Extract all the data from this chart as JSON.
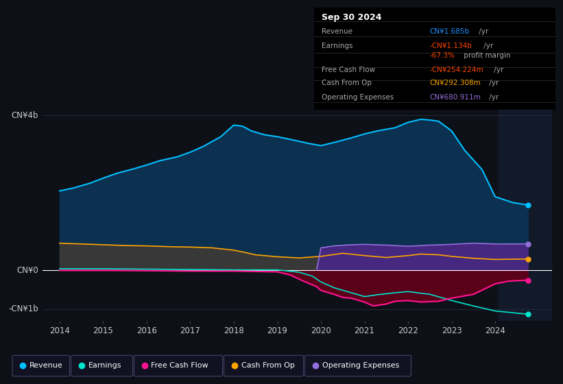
{
  "background_color": "#0d1117",
  "plot_bg_color": "#0d1117",
  "ylabel_top": "CN¥4b",
  "ylabel_zero": "CN¥0",
  "ylabel_bottom": "-CN¥1b",
  "ylim": [
    -1.3,
    4.6
  ],
  "xlim_start": 2013.6,
  "xlim_end": 2025.3,
  "xticks": [
    2014,
    2015,
    2016,
    2017,
    2018,
    2019,
    2020,
    2021,
    2022,
    2023,
    2024
  ],
  "series": {
    "revenue": {
      "color": "#00bfff",
      "fill_color": "#0a3550",
      "label": "Revenue"
    },
    "earnings": {
      "color": "#00e5cc",
      "fill_color": "#0a3550",
      "label": "Earnings"
    },
    "fcf": {
      "color": "#ff1493",
      "fill_color": "#6b0020",
      "label": "Free Cash Flow"
    },
    "cashfromop": {
      "color": "#ffa500",
      "fill_color": "#3a3a3a",
      "label": "Cash From Op"
    },
    "opex": {
      "color": "#9370db",
      "fill_color": "#4b2a8a",
      "label": "Operating Expenses"
    }
  },
  "grid_color": "#2a2a3a",
  "text_color": "#cccccc",
  "revenue_x": [
    2014,
    2014.3,
    2014.7,
    2015,
    2015.3,
    2015.7,
    2016,
    2016.3,
    2016.7,
    2017,
    2017.3,
    2017.7,
    2018,
    2018.2,
    2018.4,
    2018.7,
    2019,
    2019.3,
    2019.7,
    2020,
    2020.3,
    2020.7,
    2021,
    2021.3,
    2021.7,
    2022,
    2022.3,
    2022.5,
    2022.7,
    2023,
    2023.3,
    2023.7,
    2024,
    2024.4,
    2024.75
  ],
  "revenue_y": [
    2.05,
    2.12,
    2.25,
    2.38,
    2.5,
    2.62,
    2.72,
    2.83,
    2.93,
    3.05,
    3.2,
    3.45,
    3.75,
    3.72,
    3.6,
    3.5,
    3.45,
    3.38,
    3.28,
    3.22,
    3.3,
    3.42,
    3.52,
    3.6,
    3.68,
    3.82,
    3.9,
    3.88,
    3.85,
    3.6,
    3.1,
    2.6,
    1.9,
    1.75,
    1.685
  ],
  "earnings_x": [
    2014,
    2015,
    2016,
    2017,
    2018,
    2019,
    2019.5,
    2019.8,
    2020,
    2020.3,
    2020.7,
    2021,
    2021.3,
    2021.7,
    2022,
    2022.5,
    2023,
    2023.5,
    2024,
    2024.75
  ],
  "earnings_y": [
    0.04,
    0.04,
    0.03,
    0.02,
    0.01,
    0.01,
    -0.05,
    -0.15,
    -0.3,
    -0.45,
    -0.58,
    -0.68,
    -0.63,
    -0.58,
    -0.55,
    -0.62,
    -0.78,
    -0.92,
    -1.05,
    -1.134
  ],
  "fcf_x": [
    2014,
    2015,
    2016,
    2017,
    2018,
    2018.5,
    2019,
    2019.3,
    2019.6,
    2019.9,
    2020,
    2020.3,
    2020.5,
    2020.7,
    2021,
    2021.2,
    2021.5,
    2021.7,
    2022,
    2022.3,
    2022.7,
    2023,
    2023.5,
    2024,
    2024.3,
    2024.75
  ],
  "fcf_y": [
    0.0,
    0.0,
    -0.01,
    -0.02,
    -0.02,
    -0.03,
    -0.04,
    -0.12,
    -0.28,
    -0.42,
    -0.52,
    -0.62,
    -0.7,
    -0.72,
    -0.82,
    -0.92,
    -0.87,
    -0.8,
    -0.78,
    -0.82,
    -0.8,
    -0.72,
    -0.62,
    -0.35,
    -0.28,
    -0.254
  ],
  "cashop_x": [
    2014,
    2014.5,
    2015,
    2015.5,
    2016,
    2016.5,
    2017,
    2017.5,
    2018,
    2018.3,
    2018.5,
    2018.7,
    2019,
    2019.5,
    2020,
    2020.5,
    2021,
    2021.5,
    2022,
    2022.3,
    2022.7,
    2023,
    2023.5,
    2024,
    2024.75
  ],
  "cashop_y": [
    0.7,
    0.68,
    0.66,
    0.64,
    0.63,
    0.61,
    0.6,
    0.58,
    0.52,
    0.45,
    0.4,
    0.38,
    0.35,
    0.32,
    0.36,
    0.44,
    0.38,
    0.33,
    0.38,
    0.42,
    0.4,
    0.36,
    0.31,
    0.28,
    0.292
  ],
  "opex_x": [
    2019.9,
    2020,
    2020.3,
    2020.7,
    2021,
    2021.5,
    2022,
    2022.5,
    2023,
    2023.5,
    2024,
    2024.75
  ],
  "opex_y": [
    0.0,
    0.58,
    0.63,
    0.66,
    0.67,
    0.65,
    0.62,
    0.65,
    0.67,
    0.7,
    0.68,
    0.681
  ],
  "info_box": {
    "date": "Sep 30 2024",
    "rows": [
      {
        "label": "Revenue",
        "value": "CN¥1.685b",
        "unit": " /yr",
        "vcolor": "#1e90ff"
      },
      {
        "label": "Earnings",
        "value": "-CN¥1.134b",
        "unit": " /yr",
        "vcolor": "#ff4500"
      },
      {
        "label": "",
        "value": "-67.3%",
        "unit": " profit margin",
        "vcolor": "#ff4500"
      },
      {
        "label": "Free Cash Flow",
        "value": "-CN¥254.224m",
        "unit": " /yr",
        "vcolor": "#ff4500"
      },
      {
        "label": "Cash From Op",
        "value": "CN¥292.308m",
        "unit": " /yr",
        "vcolor": "#ffa500"
      },
      {
        "label": "Operating Expenses",
        "value": "CN¥680.911m",
        "unit": " /yr",
        "vcolor": "#9370db"
      }
    ]
  },
  "legend_items": [
    {
      "label": "Revenue",
      "color": "#00bfff"
    },
    {
      "label": "Earnings",
      "color": "#00e5cc"
    },
    {
      "label": "Free Cash Flow",
      "color": "#ff1493"
    },
    {
      "label": "Cash From Op",
      "color": "#ffa500"
    },
    {
      "label": "Operating Expenses",
      "color": "#9370db"
    }
  ]
}
